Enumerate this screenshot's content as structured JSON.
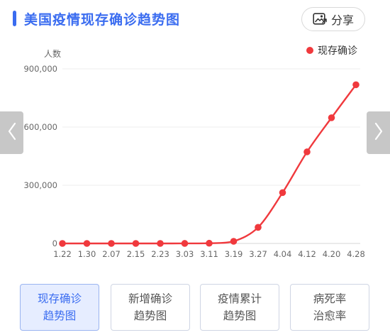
{
  "header": {
    "title": "美国疫情现存确诊趋势图",
    "share_label": "分享",
    "share_icon": "image-share-icon",
    "accent_color": "#3a6cf0"
  },
  "chart_data": {
    "type": "line",
    "title": "",
    "ylabel": "人数",
    "xlabel": "",
    "ylim": [
      0,
      900000
    ],
    "yticks": [
      0,
      300000,
      600000,
      900000
    ],
    "ytick_labels": [
      "0",
      "300,000",
      "600,000",
      "900,000"
    ],
    "categories": [
      "1.22",
      "1.30",
      "2.07",
      "2.15",
      "2.23",
      "3.03",
      "3.11",
      "3.19",
      "3.27",
      "4.04",
      "4.12",
      "4.20",
      "4.28"
    ],
    "grid": true,
    "legend_position": "top-right",
    "series": [
      {
        "name": "现存确诊",
        "color": "#f0393d",
        "values": [
          1,
          5,
          11,
          13,
          15,
          60,
          1000,
          11000,
          83000,
          262000,
          472000,
          648000,
          818000
        ]
      }
    ]
  },
  "nav": {
    "prev_icon": "chevron-left-icon",
    "next_icon": "chevron-right-icon"
  },
  "tabs": [
    {
      "line1": "现存确诊",
      "line2": "趋势图",
      "active": true
    },
    {
      "line1": "新增确诊",
      "line2": "趋势图",
      "active": false
    },
    {
      "line1": "疫情累计",
      "line2": "趋势图",
      "active": false
    },
    {
      "line1": "病死率",
      "line2": "治愈率",
      "active": false
    }
  ]
}
